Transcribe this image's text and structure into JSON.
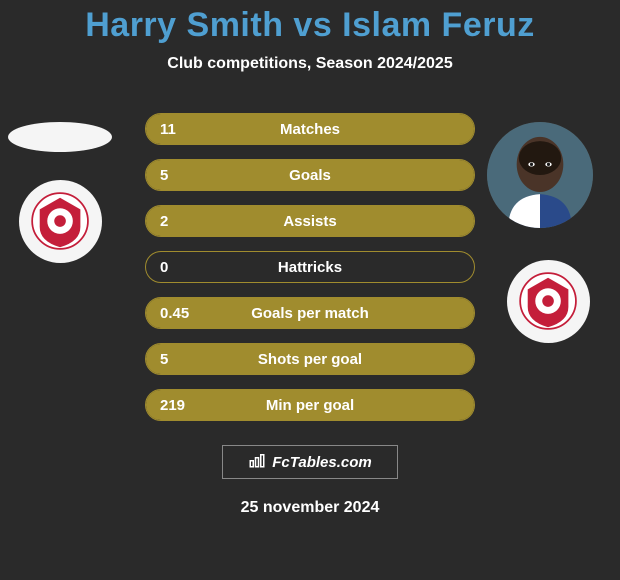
{
  "title": "Harry Smith vs Islam Feruz",
  "subtitle": "Club competitions, Season 2024/2025",
  "date": "25 november 2024",
  "watermark": "FcTables.com",
  "colors": {
    "title": "#4f9fd1",
    "bar_fill": "#a08c2e",
    "bar_border": "#a08c2e",
    "background": "#2a2a2a",
    "text": "#ffffff"
  },
  "stats": [
    {
      "value": "11",
      "label": "Matches",
      "fill_pct": 100
    },
    {
      "value": "5",
      "label": "Goals",
      "fill_pct": 100
    },
    {
      "value": "2",
      "label": "Assists",
      "fill_pct": 100
    },
    {
      "value": "0",
      "label": "Hattricks",
      "fill_pct": 0
    },
    {
      "value": "0.45",
      "label": "Goals per match",
      "fill_pct": 100
    },
    {
      "value": "5",
      "label": "Shots per goal",
      "fill_pct": 100
    },
    {
      "value": "219",
      "label": "Min per goal",
      "fill_pct": 100
    }
  ],
  "avatars": {
    "left_placeholder": "blank-oval",
    "left_crest": "swindon-crest",
    "right_player": "player-portrait",
    "right_crest": "swindon-crest"
  }
}
